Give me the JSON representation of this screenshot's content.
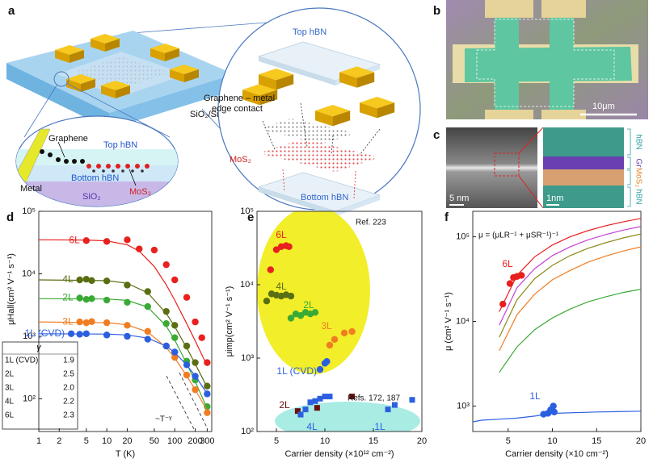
{
  "panels": [
    "a",
    "b",
    "c",
    "d",
    "e",
    "f"
  ],
  "diagram_a": {
    "device_label": "SiO₂/Si",
    "inset": {
      "graphene": "Graphene",
      "top": "Top hBN",
      "metal": "Metal",
      "bottom": "Bottom hBN",
      "substrate": "SiO₂",
      "mos2": "MoS₂"
    },
    "exploded": {
      "top": "Top hBN",
      "contact": [
        "Graphene – metal",
        "edge contact"
      ],
      "mos2": "MoS₂",
      "bottom": "Bottom hBN"
    }
  },
  "image_b": {
    "scale": "10μm"
  },
  "image_c": {
    "scale_left": "5 nm",
    "scale_right": "1nm",
    "layers": [
      "hBN",
      "Gr",
      "MoS₂",
      "hBN"
    ]
  },
  "chart_data": [
    {
      "type": "scatter",
      "xlog": true,
      "ylog": true,
      "xlabel": "T (K)",
      "ylabel": "μHall(cm² V⁻¹ s⁻¹)",
      "xlim": [
        1,
        350
      ],
      "ylim": [
        30,
        100000
      ],
      "xticks": [
        1,
        2,
        5,
        10,
        20,
        50,
        100,
        200,
        300
      ],
      "yticks": [
        {
          "value": 100,
          "label": "10²"
        },
        {
          "value": 1000,
          "label": "10³"
        },
        {
          "value": 10000,
          "label": "10⁴"
        },
        {
          "value": 100000,
          "label": "10⁵"
        }
      ],
      "series": [
        {
          "name": "6L",
          "color": "#e8201e",
          "marker": "circle",
          "x": [
            5,
            10,
            20,
            30,
            50,
            75,
            100,
            150,
            200,
            250,
            300
          ],
          "values": [
            34000,
            33000,
            35000,
            25000,
            24000,
            14000,
            8000,
            4200,
            1700,
            950,
            380
          ],
          "fit_x": [
            1,
            5,
            10,
            20,
            30,
            50,
            75,
            100,
            150,
            200,
            300
          ],
          "fit": [
            35000,
            34700,
            33600,
            29100,
            23100,
            13100,
            6680,
            3790,
            1600,
            843,
            336
          ]
        },
        {
          "name": "4L",
          "color": "#5a6e12",
          "marker": "circle",
          "x": [
            4,
            5,
            6,
            10,
            20,
            40,
            75,
            100,
            150,
            200,
            300
          ],
          "values": [
            8000,
            8200,
            7800,
            7700,
            6600,
            5200,
            2500,
            1500,
            700,
            380,
            160
          ],
          "fit_x": [
            1,
            10,
            20,
            40,
            75,
            100,
            150,
            200,
            300
          ],
          "fit": [
            8000,
            7780,
            7060,
            4960,
            2330,
            1430,
            656,
            362,
            152
          ]
        },
        {
          "name": "2L",
          "color": "#3aaa35",
          "marker": "circle",
          "x": [
            4,
            5,
            6,
            10,
            20,
            40,
            75,
            100,
            150,
            200,
            300
          ],
          "values": [
            4100,
            3900,
            4000,
            3800,
            3500,
            3000,
            1600,
            950,
            400,
            200,
            75
          ],
          "fit_x": [
            1,
            10,
            20,
            40,
            75,
            100,
            150,
            200,
            300
          ],
          "fit": [
            4000,
            3955,
            3760,
            2935,
            1456,
            872,
            368,
            188,
            70
          ]
        },
        {
          "name": "3L",
          "color": "#f07d22",
          "marker": "circle",
          "x": [
            4,
            5,
            6,
            10,
            20,
            40,
            75,
            100,
            150,
            200,
            300
          ],
          "values": [
            1700,
            1650,
            1720,
            1650,
            1500,
            1200,
            700,
            460,
            240,
            140,
            60
          ],
          "fit_x": [
            1,
            10,
            20,
            40,
            75,
            100,
            150,
            200,
            300
          ],
          "fit": [
            1700,
            1654,
            1530,
            1177,
            663,
            450,
            234,
            140,
            65
          ]
        },
        {
          "name": "1L (CVD)",
          "color": "#2c5fe0",
          "marker": "circle",
          "x": [
            3,
            4,
            5,
            10,
            20,
            40,
            75,
            100,
            150,
            200,
            300
          ],
          "values": [
            1100,
            1080,
            1100,
            1050,
            1000,
            900,
            700,
            560,
            350,
            230,
            120
          ],
          "fit_x": [
            1,
            10,
            20,
            40,
            75,
            100,
            150,
            200,
            300
          ],
          "fit": [
            1100,
            1086,
            1051,
            936,
            697,
            550,
            348,
            233,
            121
          ]
        }
      ],
      "annotations": [
        "~T⁻ᵞ"
      ],
      "gamma_table": {
        "header": "γ",
        "rows": [
          [
            "1L (CVD)",
            "1.9"
          ],
          [
            "2L",
            "2.5"
          ],
          [
            "3L",
            "2.0"
          ],
          [
            "4L",
            "2.2"
          ],
          [
            "6L",
            "2.3"
          ]
        ]
      }
    },
    {
      "type": "scatter",
      "xlog": false,
      "ylog": true,
      "xlabel": "Carrier density (×10¹² cm⁻²)",
      "ylabel": "μimp(cm² V⁻¹ s⁻¹)",
      "xlim": [
        3,
        20
      ],
      "ylim": [
        100,
        100000
      ],
      "xticks": [
        5,
        10,
        15,
        20
      ],
      "yticks": [
        {
          "value": 100,
          "label": "10²"
        },
        {
          "value": 1000,
          "label": "10³"
        },
        {
          "value": 10000,
          "label": "10⁴"
        },
        {
          "value": 100000,
          "label": "10⁵"
        }
      ],
      "series": [
        {
          "name": "6L",
          "color": "#e8201e",
          "marker": "circle",
          "x": [
            4.4,
            5,
            5.5,
            6,
            6.3
          ],
          "values": [
            16000,
            30000,
            33000,
            34000,
            33000
          ]
        },
        {
          "name": "4L",
          "color": "#5a6e12",
          "marker": "circle",
          "x": [
            4,
            4.5,
            5,
            5.5,
            6,
            6.5
          ],
          "values": [
            6000,
            7500,
            7200,
            7000,
            7300,
            7000
          ]
        },
        {
          "name": "2L",
          "color": "#3aaa35",
          "marker": "circle",
          "x": [
            6.5,
            7,
            7.5,
            8,
            8.5,
            9
          ],
          "values": [
            3500,
            4000,
            3800,
            4200,
            4000,
            4200
          ]
        },
        {
          "name": "3L",
          "color": "#f07d22",
          "marker": "circle",
          "x": [
            10.5,
            11,
            12,
            12.8
          ],
          "values": [
            1500,
            1800,
            2200,
            2300
          ]
        },
        {
          "name": "1L (CVD)",
          "color": "#2c5fe0",
          "marker": "circle",
          "x": [
            9.5,
            10,
            10.2
          ],
          "values": [
            700,
            850,
            900
          ]
        },
        {
          "name": "2L",
          "color": "#6b0f0f",
          "marker": "square",
          "x": [
            7.2,
            9.2,
            12.8
          ],
          "values": [
            190,
            210,
            300
          ]
        },
        {
          "name": "4L",
          "color": "#2c5fe0",
          "marker": "square",
          "x": [
            7.5,
            8,
            8.5,
            9,
            9.5,
            10,
            10.5
          ],
          "values": [
            170,
            200,
            250,
            260,
            280,
            300,
            300
          ]
        },
        {
          "name": "1L",
          "color": "#2c5fe0",
          "marker": "square",
          "x": [
            16.5,
            17.2,
            19
          ],
          "values": [
            200,
            230,
            270
          ]
        }
      ],
      "annotations": [
        "Ref. 223",
        "Refs. 172, 187"
      ]
    },
    {
      "type": "scatter",
      "xlog": false,
      "ylog": true,
      "xlabel": "Carrier density (×10 cm⁻²)",
      "ylabel": "μ (cm² V⁻¹ s⁻¹)",
      "xlim": [
        1,
        20
      ],
      "ylim": [
        500,
        200000
      ],
      "xticks": [
        5,
        10,
        15,
        20
      ],
      "yticks": [
        {
          "value": 1000,
          "label": "10³"
        },
        {
          "value": 10000,
          "label": "10⁴"
        },
        {
          "value": 100000,
          "label": "10⁵"
        }
      ],
      "series": [
        {
          "color": "#e8201e",
          "style": "line",
          "x": [
            4,
            6,
            8,
            10,
            12,
            14,
            16,
            18,
            20
          ],
          "values": [
            13000,
            35000,
            58000,
            80000,
            100000,
            118000,
            135000,
            150000,
            165000
          ]
        },
        {
          "color": "#c83fd8",
          "style": "line",
          "x": [
            4,
            6,
            8,
            10,
            12,
            14,
            16,
            18,
            20
          ],
          "values": [
            9000,
            25000,
            42000,
            60000,
            76000,
            92000,
            106000,
            120000,
            132000
          ]
        },
        {
          "color": "#8a8a1a",
          "style": "line",
          "x": [
            4,
            6,
            8,
            10,
            12,
            14,
            16,
            18,
            20
          ],
          "values": [
            6500,
            18000,
            32000,
            46000,
            60000,
            73000,
            85000,
            97000,
            108000
          ]
        },
        {
          "color": "#f07d22",
          "style": "line",
          "x": [
            4,
            6,
            8,
            10,
            12,
            14,
            16,
            18,
            20
          ],
          "values": [
            4500,
            12000,
            21000,
            31000,
            40000,
            50000,
            59000,
            68000,
            76000
          ]
        },
        {
          "color": "#3aaa35",
          "style": "line",
          "x": [
            4,
            6,
            8,
            10,
            12,
            14,
            16,
            18,
            20
          ],
          "values": [
            2500,
            5000,
            8000,
            11000,
            14000,
            17000,
            19500,
            22000,
            24000
          ]
        },
        {
          "color": "#2c5fe0",
          "style": "line",
          "x": [
            1,
            2,
            4,
            6,
            8,
            10,
            15,
            20
          ],
          "values": [
            650,
            680,
            700,
            720,
            760,
            820,
            850,
            870
          ]
        },
        {
          "name": "6L",
          "color": "#e8201e",
          "marker": "circle",
          "x": [
            4.4,
            5.2,
            5.6,
            6,
            6.5
          ],
          "values": [
            16000,
            28000,
            33000,
            34000,
            35000
          ]
        },
        {
          "name": "1L",
          "color": "#2c5fe0",
          "marker": "circle",
          "x": [
            9,
            9.5,
            9.8,
            10.1,
            10.2
          ],
          "values": [
            800,
            820,
            900,
            1000,
            850
          ]
        }
      ],
      "annotations": [
        "μ = (μLR⁻¹ + μSR⁻¹)⁻¹"
      ]
    }
  ]
}
